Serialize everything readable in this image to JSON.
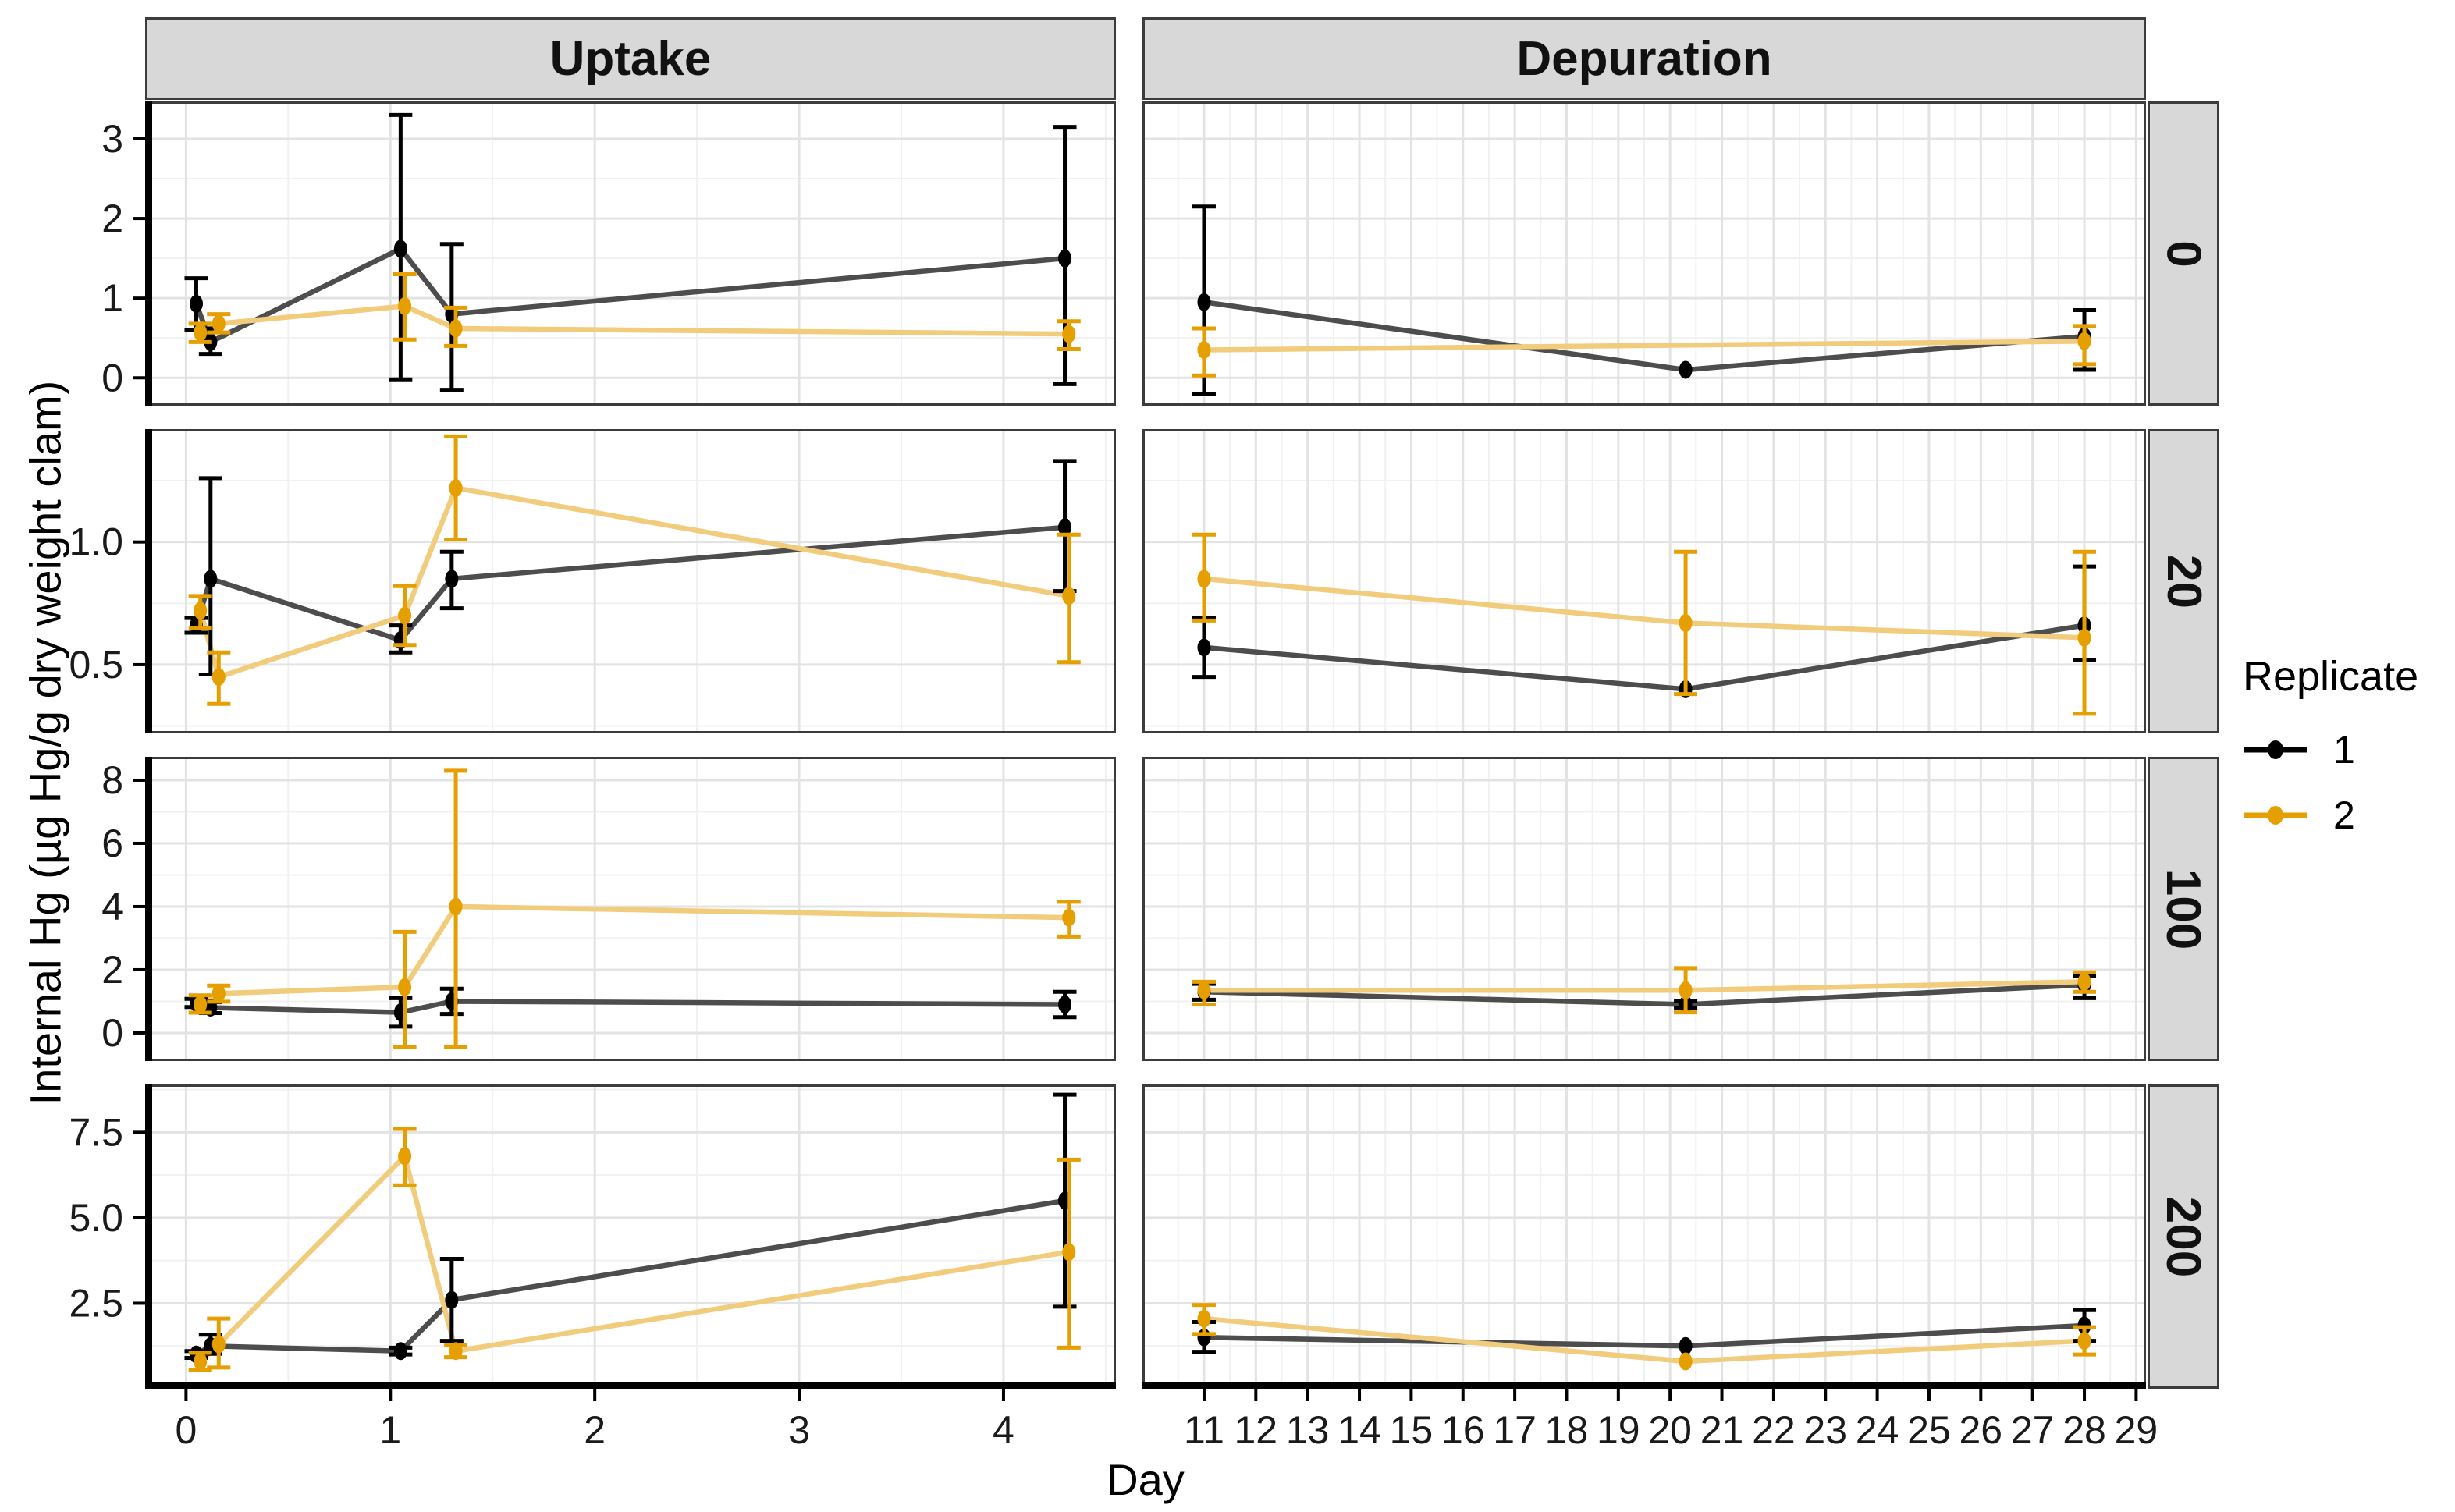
{
  "chart_data": {
    "type": "line",
    "title": "",
    "xlabel": "Day",
    "ylabel": "Internal Hg (µg Hg/g dry weight clam)",
    "grid": true,
    "legend": {
      "title": "Replicate",
      "position": "right",
      "entries": [
        {
          "label": "1",
          "point_color": "#000000",
          "line_color": "#4d4d4d"
        },
        {
          "label": "2",
          "point_color": "#E69F00",
          "line_color": "#F2CC7D"
        }
      ]
    },
    "colors": {
      "strip_bg": "#d8d8d8",
      "strip_border": "#3c3c3c",
      "panel_border": "#3c3c3c",
      "grid_major": "#e3e3e3",
      "grid_minor": "#f1f1f1",
      "axis_line": "#000000",
      "text": "#1a1a1a"
    },
    "columns": [
      {
        "label": "Uptake",
        "x_domain": [
          -0.2,
          4.55
        ],
        "x_ticks": [
          0,
          1,
          2,
          3,
          4
        ],
        "x_tick_labels": [
          "0",
          "1",
          "2",
          "3",
          "4"
        ],
        "x_minor": [
          0.5,
          1.5,
          2.5,
          3.5,
          4.5
        ]
      },
      {
        "label": "Depuration",
        "x_domain": [
          9.81,
          29.19
        ],
        "x_ticks": [
          11,
          12,
          13,
          14,
          15,
          16,
          17,
          18,
          19,
          20,
          21,
          22,
          23,
          24,
          25,
          26,
          27,
          28,
          29
        ],
        "x_tick_labels": [
          "11",
          "12",
          "13",
          "14",
          "15",
          "16",
          "17",
          "18",
          "19",
          "20",
          "21",
          "22",
          "23",
          "24",
          "25",
          "26",
          "27",
          "28",
          "29"
        ],
        "x_minor": [
          10.5,
          11.5,
          12.5,
          13.5,
          14.5,
          15.5,
          16.5,
          17.5,
          18.5,
          19.5,
          20.5,
          21.5,
          22.5,
          23.5,
          24.5,
          25.5,
          26.5,
          27.5,
          28.5
        ]
      }
    ],
    "rows": [
      {
        "label": "0",
        "y_domain": [
          -0.35,
          3.47
        ],
        "y_ticks": [
          0,
          1,
          2,
          3
        ],
        "y_tick_labels": [
          "0",
          "1",
          "2",
          "3"
        ],
        "y_minor": [
          0.5,
          1.5,
          2.5
        ]
      },
      {
        "label": "20",
        "y_domain": [
          0.22,
          1.46
        ],
        "y_ticks": [
          0.5,
          1.0
        ],
        "y_tick_labels": [
          "0.5",
          "1.0"
        ],
        "y_minor": [
          0.25,
          0.75,
          1.25
        ]
      },
      {
        "label": "100",
        "y_domain": [
          -0.89,
          8.74
        ],
        "y_ticks": [
          0,
          2,
          4,
          6,
          8
        ],
        "y_tick_labels": [
          "0",
          "2",
          "4",
          "6",
          "8"
        ],
        "y_minor": [
          1,
          3,
          5,
          7
        ]
      },
      {
        "label": "200",
        "y_domain": [
          0.0,
          8.9
        ],
        "y_ticks": [
          2.5,
          5.0,
          7.5
        ],
        "y_tick_labels": [
          "2.5",
          "5.0",
          "7.5"
        ],
        "y_minor": [
          1.25,
          3.75,
          6.25,
          8.75
        ]
      }
    ],
    "panels": [
      {
        "row": 0,
        "col": 0,
        "series": [
          {
            "replicate": "1",
            "points": [
              [
                0.05,
                0.93,
                0.6,
                1.25
              ],
              [
                0.12,
                0.45,
                0.3,
                0.62
              ],
              [
                1.05,
                1.62,
                -0.02,
                3.3
              ],
              [
                1.3,
                0.8,
                -0.15,
                1.68
              ],
              [
                4.3,
                1.5,
                -0.08,
                3.15
              ]
            ]
          },
          {
            "replicate": "2",
            "points": [
              [
                0.07,
                0.57,
                0.45,
                0.68
              ],
              [
                0.16,
                0.68,
                0.57,
                0.8
              ],
              [
                1.07,
                0.9,
                0.48,
                1.3
              ],
              [
                1.32,
                0.62,
                0.4,
                0.88
              ],
              [
                4.32,
                0.55,
                0.36,
                0.71
              ]
            ]
          }
        ]
      },
      {
        "row": 0,
        "col": 1,
        "series": [
          {
            "replicate": "1",
            "points": [
              [
                11,
                0.95,
                -0.2,
                2.15
              ],
              [
                20.3,
                0.1,
                0.1,
                0.1
              ],
              [
                28,
                0.52,
                0.1,
                0.85
              ]
            ]
          },
          {
            "replicate": "2",
            "points": [
              [
                11,
                0.35,
                0.03,
                0.62
              ],
              [
                28,
                0.46,
                0.17,
                0.65
              ]
            ]
          }
        ]
      },
      {
        "row": 1,
        "col": 0,
        "series": [
          {
            "replicate": "1",
            "points": [
              [
                0.05,
                0.66,
                0.63,
                0.69
              ],
              [
                0.12,
                0.85,
                0.46,
                1.26
              ],
              [
                1.05,
                0.6,
                0.55,
                0.66
              ],
              [
                1.3,
                0.85,
                0.73,
                0.96
              ],
              [
                4.3,
                1.06,
                0.8,
                1.33
              ]
            ]
          },
          {
            "replicate": "2",
            "points": [
              [
                0.07,
                0.72,
                0.65,
                0.78
              ],
              [
                0.16,
                0.45,
                0.34,
                0.55
              ],
              [
                1.07,
                0.7,
                0.58,
                0.82
              ],
              [
                1.32,
                1.22,
                1.01,
                1.43
              ],
              [
                4.32,
                0.78,
                0.51,
                1.03
              ]
            ]
          }
        ]
      },
      {
        "row": 1,
        "col": 1,
        "series": [
          {
            "replicate": "1",
            "points": [
              [
                11,
                0.57,
                0.45,
                0.69
              ],
              [
                20.3,
                0.4,
                0.4,
                0.4
              ],
              [
                28,
                0.66,
                0.52,
                0.9
              ]
            ]
          },
          {
            "replicate": "2",
            "points": [
              [
                11,
                0.85,
                0.68,
                1.03
              ],
              [
                20.3,
                0.67,
                0.38,
                0.96
              ],
              [
                28,
                0.61,
                0.3,
                0.96
              ]
            ]
          }
        ]
      },
      {
        "row": 2,
        "col": 0,
        "series": [
          {
            "replicate": "1",
            "points": [
              [
                0.05,
                0.95,
                0.82,
                1.08
              ],
              [
                0.12,
                0.8,
                0.63,
                0.97
              ],
              [
                1.05,
                0.65,
                0.2,
                1.1
              ],
              [
                1.3,
                1.0,
                0.6,
                1.4
              ],
              [
                4.3,
                0.9,
                0.5,
                1.3
              ]
            ]
          },
          {
            "replicate": "2",
            "points": [
              [
                0.07,
                0.9,
                0.64,
                1.19
              ],
              [
                0.16,
                1.25,
                0.99,
                1.5
              ],
              [
                1.07,
                1.45,
                -0.45,
                3.2
              ],
              [
                1.32,
                4.0,
                -0.45,
                8.3
              ],
              [
                4.32,
                3.65,
                3.05,
                4.15
              ]
            ]
          }
        ]
      },
      {
        "row": 2,
        "col": 1,
        "series": [
          {
            "replicate": "1",
            "points": [
              [
                11,
                1.3,
                1.05,
                1.55
              ],
              [
                20.3,
                0.9,
                0.78,
                1.02
              ],
              [
                28,
                1.52,
                1.1,
                1.8
              ]
            ]
          },
          {
            "replicate": "2",
            "points": [
              [
                11,
                1.35,
                0.9,
                1.62
              ],
              [
                20.3,
                1.35,
                0.65,
                2.05
              ],
              [
                28,
                1.62,
                1.3,
                1.92
              ]
            ]
          }
        ]
      },
      {
        "row": 3,
        "col": 0,
        "series": [
          {
            "replicate": "1",
            "points": [
              [
                0.05,
                1.0,
                0.9,
                1.1
              ],
              [
                0.12,
                1.25,
                1.02,
                1.58
              ],
              [
                1.05,
                1.1,
                1.0,
                1.2
              ],
              [
                1.3,
                2.6,
                1.4,
                3.8
              ],
              [
                4.3,
                5.5,
                2.4,
                8.6
              ]
            ]
          },
          {
            "replicate": "2",
            "points": [
              [
                0.07,
                0.8,
                0.55,
                1.05
              ],
              [
                0.16,
                1.3,
                0.62,
                2.05
              ],
              [
                1.07,
                6.8,
                5.95,
                7.6
              ],
              [
                1.32,
                1.1,
                0.92,
                1.28
              ],
              [
                4.32,
                4.0,
                1.2,
                6.7
              ]
            ]
          }
        ]
      },
      {
        "row": 3,
        "col": 1,
        "series": [
          {
            "replicate": "1",
            "points": [
              [
                11,
                1.5,
                1.08,
                1.95
              ],
              [
                20.3,
                1.25,
                1.25,
                1.25
              ],
              [
                28,
                1.85,
                1.4,
                2.3
              ]
            ]
          },
          {
            "replicate": "2",
            "points": [
              [
                11,
                2.05,
                1.6,
                2.45
              ],
              [
                20.3,
                0.8,
                0.8,
                0.8
              ],
              [
                28,
                1.4,
                1.0,
                1.8
              ]
            ]
          }
        ]
      }
    ]
  }
}
